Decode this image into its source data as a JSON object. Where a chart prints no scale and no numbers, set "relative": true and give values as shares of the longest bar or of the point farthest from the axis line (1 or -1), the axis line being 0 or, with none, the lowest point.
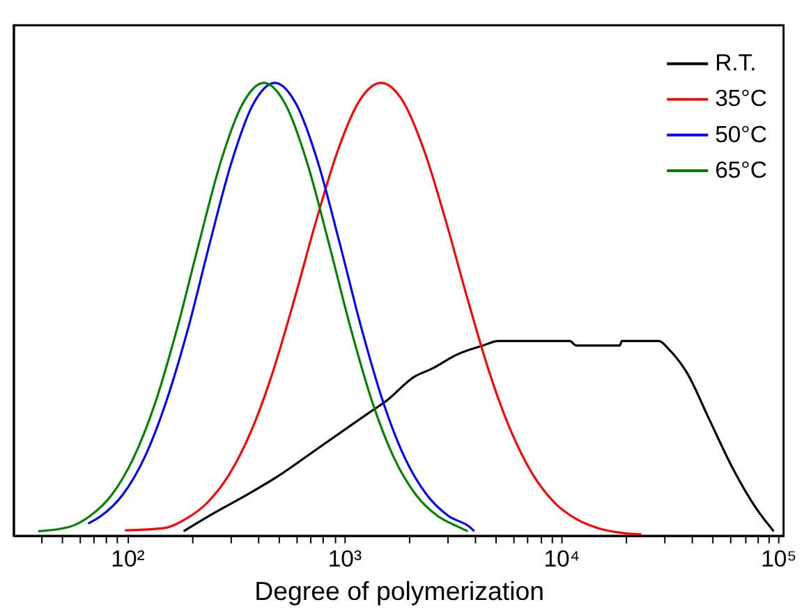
{
  "chart_data": {
    "type": "line",
    "xlabel": "Degree of polymerization",
    "log": "x",
    "relative": true,
    "legend": "top right",
    "line_style": "solid",
    "marker": "none",
    "xlim": [
      30,
      106000
    ],
    "xticks": [
      {
        "value": 40,
        "label": null
      },
      {
        "value": 50,
        "label": null
      },
      {
        "value": 60,
        "label": null
      },
      {
        "value": 70,
        "label": null
      },
      {
        "value": 80,
        "label": null
      },
      {
        "value": 90,
        "label": null
      },
      {
        "value": 100,
        "label": "10²"
      },
      {
        "value": 200,
        "label": null
      },
      {
        "value": 300,
        "label": null
      },
      {
        "value": 400,
        "label": null
      },
      {
        "value": 500,
        "label": null
      },
      {
        "value": 600,
        "label": null
      },
      {
        "value": 700,
        "label": null
      },
      {
        "value": 800,
        "label": null
      },
      {
        "value": 900,
        "label": null
      },
      {
        "value": 1000,
        "label": "10³"
      },
      {
        "value": 2000,
        "label": null
      },
      {
        "value": 3000,
        "label": null
      },
      {
        "value": 4000,
        "label": null
      },
      {
        "value": 5000,
        "label": null
      },
      {
        "value": 6000,
        "label": null
      },
      {
        "value": 7000,
        "label": null
      },
      {
        "value": 8000,
        "label": null
      },
      {
        "value": 9000,
        "label": null
      },
      {
        "value": 10000,
        "label": "10⁴"
      },
      {
        "value": 20000,
        "label": null
      },
      {
        "value": 30000,
        "label": null
      },
      {
        "value": 40000,
        "label": null
      },
      {
        "value": 50000,
        "label": null
      },
      {
        "value": 60000,
        "label": null
      },
      {
        "value": 70000,
        "label": null
      },
      {
        "value": 80000,
        "label": null
      },
      {
        "value": 90000,
        "label": null
      },
      {
        "value": 100000,
        "label": "10⁵"
      }
    ],
    "series": [
      {
        "name": "R.T.",
        "color": "#000000",
        "x": [
          182,
          251,
          355,
          490,
          794,
          1288,
          1585,
          2089,
          2570,
          3311,
          4365,
          5129,
          10965,
          11749,
          18621,
          19055,
          28184,
          31623,
          38019,
          47863,
          61660,
          79433,
          95499
        ],
        "values": [
          0.01,
          0.05,
          0.09,
          0.13,
          0.2,
          0.27,
          0.3,
          0.35,
          0.37,
          0.4,
          0.42,
          0.43,
          0.43,
          0.42,
          0.42,
          0.43,
          0.43,
          0.41,
          0.36,
          0.26,
          0.15,
          0.06,
          0.01
        ]
      },
      {
        "name": "35°C",
        "color": "#ff0000",
        "x": [
          97.7,
          148,
          186,
          234,
          295,
          372,
          468,
          589,
          741,
          933,
          1175,
          1479,
          1862,
          2344,
          2951,
          3715,
          4677,
          5888,
          7413,
          9333,
          11749,
          14791,
          18621,
          23442
        ],
        "values": [
          0.012,
          0.017,
          0.037,
          0.073,
          0.135,
          0.23,
          0.36,
          0.521,
          0.693,
          0.849,
          0.96,
          1,
          0.96,
          0.849,
          0.693,
          0.521,
          0.36,
          0.23,
          0.135,
          0.073,
          0.037,
          0.017,
          0.007,
          0.003
        ]
      },
      {
        "name": "50°C",
        "color": "#0000ff",
        "x": [
          66.1,
          75.9,
          95.5,
          120,
          151,
          191,
          240,
          302,
          380,
          479,
          603,
          759,
          955,
          1202,
          1514,
          1905,
          2399,
          3020,
          3802,
          3981
        ],
        "values": [
          0.027,
          0.044,
          0.091,
          0.172,
          0.295,
          0.458,
          0.645,
          0.823,
          0.952,
          1,
          0.952,
          0.823,
          0.645,
          0.458,
          0.295,
          0.172,
          0.091,
          0.044,
          0.019,
          0.01
        ]
      },
      {
        "name": "65°C",
        "color": "#008000",
        "x": [
          38.9,
          53.7,
          67.6,
          85.1,
          107,
          135,
          170,
          214,
          269,
          339,
          427,
          537,
          676,
          851,
          1072,
          1349,
          1698,
          2138,
          2692,
          3388,
          3715
        ],
        "values": [
          0.01,
          0.019,
          0.044,
          0.091,
          0.172,
          0.295,
          0.458,
          0.645,
          0.823,
          0.952,
          1,
          0.952,
          0.823,
          0.645,
          0.458,
          0.295,
          0.172,
          0.091,
          0.044,
          0.019,
          0.01
        ]
      }
    ]
  }
}
